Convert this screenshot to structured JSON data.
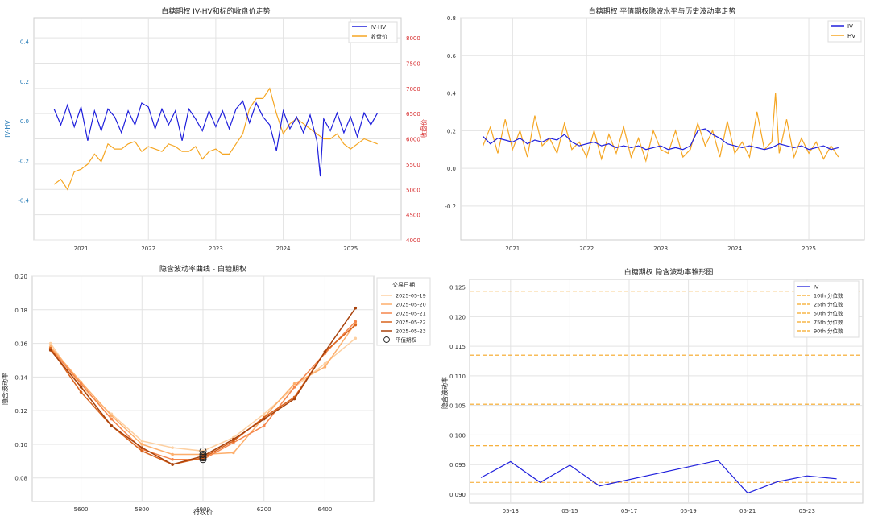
{
  "chart_data": [
    {
      "id": "c1",
      "type": "line",
      "title": "白糖期权 IV-HV和标的收盘价走势",
      "xlabel": "",
      "ylabel": "IV-HV",
      "y2label": "收盘价",
      "xlim": [
        2020.3,
        2025.75
      ],
      "ylim": [
        -0.6,
        0.52
      ],
      "y2lim": [
        4000,
        8400
      ],
      "xticks": [
        2021,
        2022,
        2023,
        2024,
        2025
      ],
      "xticklabels": [
        "2021",
        "2022",
        "2023",
        "2024",
        "2025"
      ],
      "yticks": [
        -0.4,
        -0.2,
        0.0,
        0.2,
        0.4
      ],
      "yticklabels": [
        "-0.4",
        "-0.2",
        "0.0",
        "0.2",
        "0.4"
      ],
      "y2ticks": [
        4000,
        4500,
        5000,
        5500,
        6000,
        6500,
        7000,
        7500,
        8000
      ],
      "y2ticklabels": [
        "4000",
        "4500",
        "5000",
        "5500",
        "6000",
        "6500",
        "7000",
        "7500",
        "8000"
      ],
      "legend": [
        "IV-HV",
        "收盘价"
      ],
      "legend_position": "top-right",
      "colors": {
        "ivhv": "#1f1fdc",
        "close": "#f5a623",
        "y2axis": "#d62728",
        "yaxis": "#1f77b4"
      },
      "series": [
        {
          "name": "IV-HV",
          "axis": "left",
          "x": [
            2020.6,
            2020.7,
            2020.8,
            2020.9,
            2021.0,
            2021.1,
            2021.2,
            2021.3,
            2021.4,
            2021.5,
            2021.6,
            2021.7,
            2021.8,
            2021.9,
            2022.0,
            2022.1,
            2022.2,
            2022.3,
            2022.4,
            2022.5,
            2022.6,
            2022.7,
            2022.8,
            2022.9,
            2023.0,
            2023.1,
            2023.2,
            2023.3,
            2023.4,
            2023.5,
            2023.6,
            2023.7,
            2023.8,
            2023.9,
            2024.0,
            2024.1,
            2024.2,
            2024.3,
            2024.4,
            2024.5,
            2024.55,
            2024.6,
            2024.7,
            2024.8,
            2024.9,
            2025.0,
            2025.1,
            2025.2,
            2025.3,
            2025.4
          ],
          "values": [
            0.06,
            -0.02,
            0.08,
            -0.03,
            0.07,
            -0.1,
            0.05,
            -0.05,
            0.06,
            0.02,
            -0.06,
            0.05,
            -0.02,
            0.09,
            0.07,
            -0.04,
            0.06,
            -0.02,
            0.05,
            -0.1,
            0.06,
            0.01,
            -0.05,
            0.05,
            -0.03,
            0.05,
            -0.04,
            0.06,
            0.1,
            -0.01,
            0.09,
            0.02,
            -0.02,
            -0.15,
            0.05,
            -0.04,
            0.02,
            -0.06,
            0.03,
            -0.1,
            -0.28,
            0.01,
            -0.05,
            0.04,
            -0.06,
            0.02,
            -0.08,
            0.04,
            -0.02,
            0.04
          ]
        },
        {
          "name": "收盘价",
          "axis": "right",
          "x": [
            2020.6,
            2020.7,
            2020.8,
            2020.9,
            2021.0,
            2021.1,
            2021.2,
            2021.3,
            2021.4,
            2021.5,
            2021.6,
            2021.7,
            2021.8,
            2021.9,
            2022.0,
            2022.1,
            2022.2,
            2022.3,
            2022.4,
            2022.5,
            2022.6,
            2022.7,
            2022.8,
            2022.9,
            2023.0,
            2023.1,
            2023.2,
            2023.3,
            2023.4,
            2023.5,
            2023.6,
            2023.7,
            2023.8,
            2023.9,
            2024.0,
            2024.1,
            2024.2,
            2024.3,
            2024.4,
            2024.5,
            2024.6,
            2024.7,
            2024.8,
            2024.9,
            2025.0,
            2025.1,
            2025.2,
            2025.3,
            2025.4
          ],
          "values": [
            5100,
            5200,
            5000,
            5350,
            5400,
            5500,
            5700,
            5550,
            5900,
            5800,
            5800,
            5900,
            5950,
            5750,
            5850,
            5800,
            5750,
            5900,
            5850,
            5750,
            5750,
            5850,
            5600,
            5750,
            5800,
            5700,
            5700,
            5900,
            6100,
            6600,
            6800,
            6800,
            7000,
            6500,
            6100,
            6300,
            6400,
            6300,
            6200,
            6100,
            6000,
            6000,
            6100,
            5900,
            5800,
            5900,
            6000,
            5950,
            5900
          ]
        }
      ]
    },
    {
      "id": "c2",
      "type": "line",
      "title": "白糖期权 平值期权隐波水平与历史波动率走势",
      "xlabel": "",
      "ylabel": "",
      "xlim": [
        2020.3,
        2025.75
      ],
      "ylim": [
        -0.38,
        0.8
      ],
      "xticks": [
        2021,
        2022,
        2023,
        2024,
        2025
      ],
      "xticklabels": [
        "2021",
        "2022",
        "2023",
        "2024",
        "2025"
      ],
      "yticks": [
        -0.2,
        0.0,
        0.2,
        0.4,
        0.6,
        0.8
      ],
      "yticklabels": [
        "-0.2",
        "0.0",
        "0.2",
        "0.4",
        "0.6",
        "0.8"
      ],
      "legend": [
        "IV",
        "HV"
      ],
      "legend_position": "top-right",
      "colors": {
        "iv": "#1f1fdc",
        "hv": "#f5a623"
      },
      "series": [
        {
          "name": "IV",
          "x": [
            2020.6,
            2020.7,
            2020.8,
            2020.9,
            2021.0,
            2021.1,
            2021.2,
            2021.3,
            2021.4,
            2021.5,
            2021.6,
            2021.7,
            2021.8,
            2021.9,
            2022.0,
            2022.1,
            2022.2,
            2022.3,
            2022.4,
            2022.5,
            2022.6,
            2022.7,
            2022.8,
            2022.9,
            2023.0,
            2023.1,
            2023.2,
            2023.3,
            2023.4,
            2023.5,
            2023.6,
            2023.7,
            2023.8,
            2023.9,
            2024.0,
            2024.1,
            2024.2,
            2024.3,
            2024.4,
            2024.5,
            2024.6,
            2024.7,
            2024.8,
            2024.9,
            2025.0,
            2025.1,
            2025.2,
            2025.3,
            2025.4
          ],
          "values": [
            0.17,
            0.13,
            0.16,
            0.15,
            0.14,
            0.16,
            0.13,
            0.15,
            0.14,
            0.16,
            0.15,
            0.18,
            0.14,
            0.12,
            0.13,
            0.14,
            0.12,
            0.13,
            0.11,
            0.12,
            0.11,
            0.12,
            0.1,
            0.11,
            0.12,
            0.1,
            0.11,
            0.1,
            0.12,
            0.2,
            0.21,
            0.18,
            0.16,
            0.13,
            0.12,
            0.11,
            0.12,
            0.11,
            0.1,
            0.11,
            0.13,
            0.12,
            0.11,
            0.12,
            0.1,
            0.11,
            0.12,
            0.1,
            0.11
          ]
        },
        {
          "name": "HV",
          "x": [
            2020.6,
            2020.7,
            2020.8,
            2020.9,
            2021.0,
            2021.1,
            2021.2,
            2021.3,
            2021.4,
            2021.5,
            2021.6,
            2021.7,
            2021.8,
            2021.9,
            2022.0,
            2022.1,
            2022.2,
            2022.3,
            2022.4,
            2022.5,
            2022.6,
            2022.7,
            2022.8,
            2022.9,
            2023.0,
            2023.1,
            2023.2,
            2023.3,
            2023.4,
            2023.5,
            2023.6,
            2023.7,
            2023.8,
            2023.9,
            2024.0,
            2024.1,
            2024.2,
            2024.3,
            2024.4,
            2024.5,
            2024.55,
            2024.6,
            2024.7,
            2024.8,
            2024.9,
            2025.0,
            2025.1,
            2025.2,
            2025.3,
            2025.4
          ],
          "values": [
            0.12,
            0.22,
            0.08,
            0.26,
            0.1,
            0.2,
            0.06,
            0.28,
            0.12,
            0.16,
            0.08,
            0.24,
            0.1,
            0.14,
            0.06,
            0.2,
            0.05,
            0.18,
            0.08,
            0.22,
            0.06,
            0.16,
            0.04,
            0.2,
            0.1,
            0.08,
            0.2,
            0.06,
            0.1,
            0.24,
            0.12,
            0.2,
            0.06,
            0.25,
            0.08,
            0.14,
            0.06,
            0.3,
            0.1,
            0.14,
            0.4,
            0.08,
            0.26,
            0.06,
            0.16,
            0.08,
            0.14,
            0.05,
            0.12,
            0.06
          ]
        }
      ]
    },
    {
      "id": "c3",
      "type": "line",
      "title": "隐含波动率曲线 - 白糖期权",
      "xlabel": "行权价",
      "ylabel": "隐含波动率",
      "xlim": [
        5440,
        6560
      ],
      "ylim": [
        0.066,
        0.2
      ],
      "xticks": [
        5600,
        5800,
        6000,
        6200,
        6400
      ],
      "xticklabels": [
        "5600",
        "5800",
        "6000",
        "6200",
        "6400"
      ],
      "yticks": [
        0.08,
        0.1,
        0.12,
        0.14,
        0.16,
        0.18,
        0.2
      ],
      "yticklabels": [
        "0.08",
        "0.10",
        "0.12",
        "0.14",
        "0.16",
        "0.18",
        "0.20"
      ],
      "legend_title": "交易日期",
      "legend": [
        "2025-05-19",
        "2025-05-20",
        "2025-05-21",
        "2025-05-22",
        "2025-05-23",
        "平值期权"
      ],
      "legend_position": "outside-right",
      "strikes": [
        5500,
        5600,
        5700,
        5800,
        5900,
        6000,
        6100,
        6200,
        6300,
        6400,
        6500
      ],
      "series": [
        {
          "name": "2025-05-19",
          "color": "#fdd0a2",
          "values": [
            0.16,
            0.134,
            0.118,
            0.102,
            0.098,
            0.096,
            0.104,
            0.118,
            0.134,
            0.148,
            0.163
          ]
        },
        {
          "name": "2025-05-20",
          "color": "#fdae6b",
          "values": [
            0.158,
            0.137,
            0.117,
            0.1,
            0.094,
            0.094,
            0.095,
            0.116,
            0.136,
            0.146,
            0.172
          ]
        },
        {
          "name": "2025-05-21",
          "color": "#f5854a",
          "values": [
            0.157,
            0.136,
            0.115,
            0.097,
            0.091,
            0.091,
            0.101,
            0.111,
            0.134,
            0.154,
            0.173
          ]
        },
        {
          "name": "2025-05-22",
          "color": "#d9621c",
          "values": [
            0.157,
            0.131,
            0.111,
            0.096,
            0.088,
            0.092,
            0.102,
            0.116,
            0.128,
            0.155,
            0.171
          ]
        },
        {
          "name": "2025-05-23",
          "color": "#a8420c",
          "values": [
            0.156,
            0.134,
            0.111,
            0.098,
            0.088,
            0.093,
            0.103,
            0.115,
            0.127,
            0.155,
            0.181
          ]
        }
      ],
      "atm": {
        "strike": 6000,
        "values": [
          0.096,
          0.094,
          0.091,
          0.092,
          0.093
        ]
      }
    },
    {
      "id": "c4",
      "type": "line",
      "title": "白糖期权 隐含波动率锥形图",
      "xlabel": "",
      "ylabel": "隐含波动率",
      "xlim": [
        0,
        12.5
      ],
      "ylim": [
        0.0885,
        0.1263
      ],
      "xticks": [
        1,
        3,
        5,
        7,
        9,
        11
      ],
      "xticklabels": [
        "05-13",
        "05-15",
        "05-17",
        "05-19",
        "05-21",
        "05-23"
      ],
      "yticks": [
        0.09,
        0.095,
        0.1,
        0.105,
        0.11,
        0.115,
        0.12,
        0.125
      ],
      "yticklabels": [
        "0.090",
        "0.095",
        "0.100",
        "0.105",
        "0.110",
        "0.115",
        "0.120",
        "0.125"
      ],
      "legend": [
        "IV",
        "10th 分位数",
        "25th 分位数",
        "50th 分位数",
        "75th 分位数",
        "90th 分位数"
      ],
      "legend_position": "top-right",
      "series": [
        {
          "name": "IV",
          "color": "#1f1fdc",
          "x": [
            0,
            1,
            2,
            3,
            4,
            8,
            9,
            10,
            11,
            12
          ],
          "values": [
            0.0928,
            0.0955,
            0.092,
            0.0949,
            0.0914,
            0.0957,
            0.0902,
            0.0921,
            0.0931,
            0.0926
          ]
        }
      ],
      "percentiles": [
        {
          "name": "10th 分位数",
          "value": 0.092
        },
        {
          "name": "25th 分位数",
          "value": 0.0982
        },
        {
          "name": "50th 分位数",
          "value": 0.1052
        },
        {
          "name": "75th 分位数",
          "value": 0.1135
        },
        {
          "name": "90th 分位数",
          "value": 0.1243
        }
      ],
      "percentile_color": "#f5a623"
    }
  ]
}
